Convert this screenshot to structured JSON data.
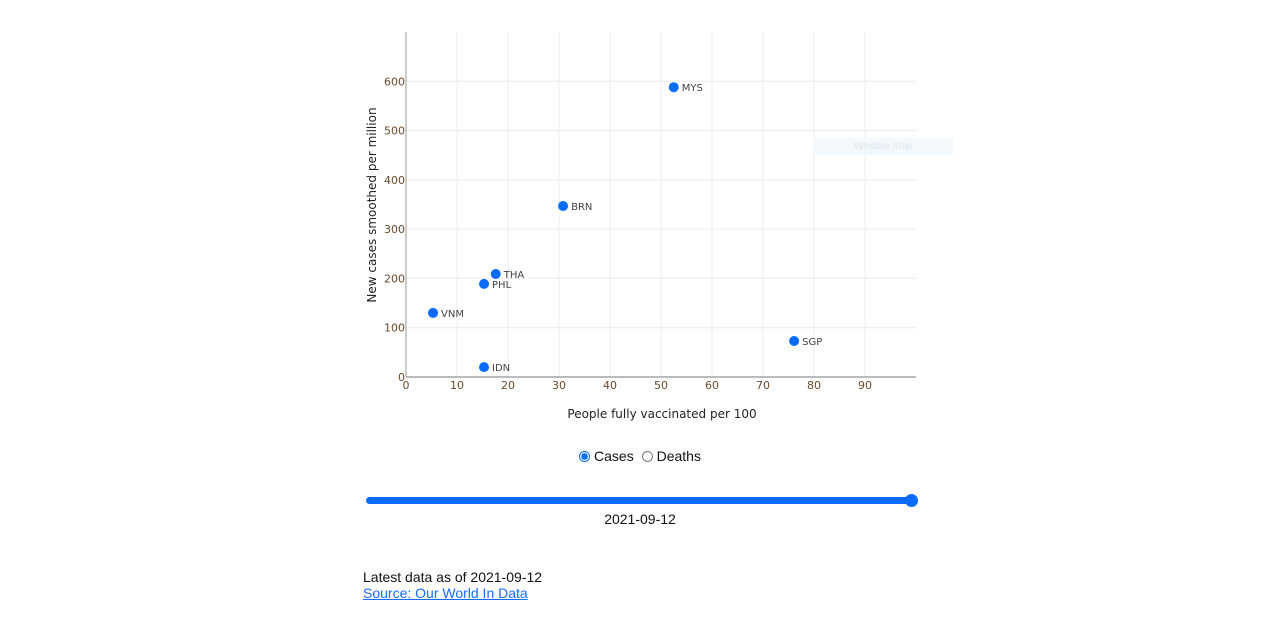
{
  "chart_data": {
    "type": "scatter",
    "xlabel": "People fully vaccinated per 100",
    "ylabel": "New cases smoothed per million",
    "xlim": [
      0,
      100
    ],
    "ylim": [
      0,
      700
    ],
    "xticks": [
      0,
      10,
      20,
      30,
      40,
      50,
      60,
      70,
      80,
      90
    ],
    "yticks": [
      0,
      100,
      200,
      300,
      400,
      500,
      600
    ],
    "grid": true,
    "marker_color": "#0a6cff",
    "points": [
      {
        "label": "MYS",
        "x": 52.5,
        "y": 588
      },
      {
        "label": "BRN",
        "x": 30.8,
        "y": 347
      },
      {
        "label": "THA",
        "x": 17.6,
        "y": 209
      },
      {
        "label": "PHL",
        "x": 15.3,
        "y": 189
      },
      {
        "label": "VNM",
        "x": 5.3,
        "y": 130
      },
      {
        "label": "SGP",
        "x": 76.1,
        "y": 73
      },
      {
        "label": "IDN",
        "x": 15.3,
        "y": 20
      }
    ]
  },
  "controls": {
    "metric_options": [
      {
        "label": "Cases",
        "checked": true
      },
      {
        "label": "Deaths",
        "checked": false
      }
    ],
    "slider_value": 1.0,
    "slider_date": "2021-09-12"
  },
  "footer": {
    "latest": "Latest data as of 2021-09-12",
    "source_link": "Source: Our World In Data"
  },
  "overlay": {
    "snip_label": "Window Snip"
  }
}
